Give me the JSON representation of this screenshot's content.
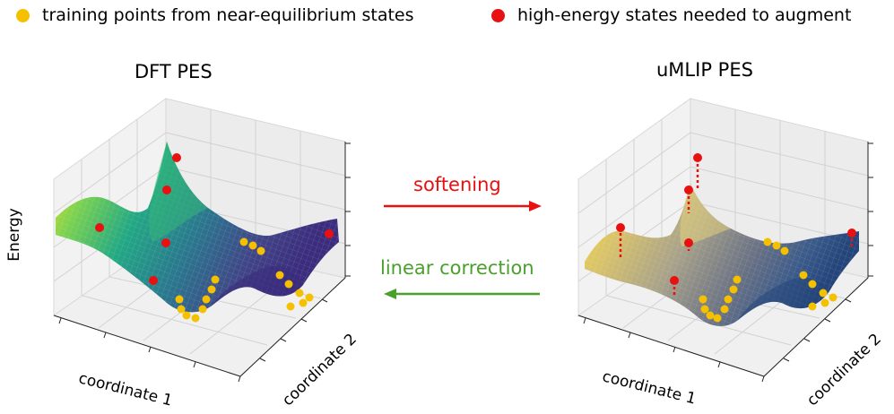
{
  "legend": {
    "training": {
      "label": "training points from near-equilibrium states",
      "color": "#f5c000"
    },
    "high_energy": {
      "label": "high-energy states needed to augment",
      "color": "#e81010"
    }
  },
  "left_panel": {
    "title": "DFT PES",
    "zlabel": "Energy",
    "xlabel": "coordinate 1",
    "ylabel": "coordinate 2",
    "colormap": "viridis"
  },
  "right_panel": {
    "title": "uMLIP PES",
    "xlabel": "coordinate 1",
    "ylabel": "coordinate 2",
    "colormap": "cividis"
  },
  "arrows": {
    "forward": {
      "label": "softening",
      "color": "#e81010"
    },
    "backward": {
      "label": "linear correction",
      "color": "#4aa02c"
    }
  }
}
